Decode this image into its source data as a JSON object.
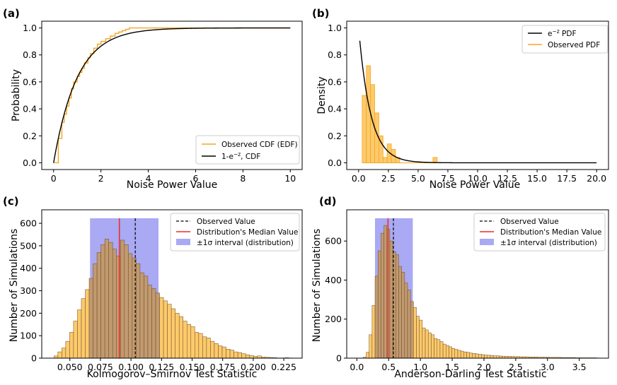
{
  "chart_data": [
    {
      "panel_label": "(a)",
      "type": "line",
      "xlabel": "Noise Power Value",
      "ylabel": "Probability",
      "xlim": [
        -0.5,
        10.5
      ],
      "ylim": [
        -0.05,
        1.05
      ],
      "xticks": [
        0,
        2,
        4,
        6,
        8,
        10
      ],
      "xtick_labels": [
        "0",
        "2",
        "4",
        "6",
        "8",
        "10"
      ],
      "yticks": [
        0.0,
        0.2,
        0.4,
        0.6,
        0.8,
        1.0
      ],
      "ytick_labels": [
        "0.0",
        "0.2",
        "0.4",
        "0.6",
        "0.8",
        "1.0"
      ],
      "legend_position": "lower right",
      "series": [
        {
          "name": "Observed CDF (EDF)",
          "color": "#f5a623",
          "style": "step",
          "x": [
            0.0,
            0.2,
            0.35,
            0.45,
            0.55,
            0.65,
            0.75,
            0.85,
            1.0,
            1.1,
            1.2,
            1.3,
            1.45,
            1.55,
            1.7,
            1.85,
            2.0,
            2.2,
            2.4,
            2.6,
            2.75,
            2.9,
            3.05,
            3.2,
            3.5,
            4.0,
            10.0
          ],
          "y": [
            0.0,
            0.18,
            0.3,
            0.36,
            0.42,
            0.48,
            0.55,
            0.6,
            0.64,
            0.67,
            0.7,
            0.74,
            0.78,
            0.81,
            0.85,
            0.88,
            0.9,
            0.92,
            0.94,
            0.96,
            0.97,
            0.98,
            0.99,
            1.0,
            1.0,
            1.0,
            1.0
          ]
        },
        {
          "name": "1-e$^{-z}$, CDF",
          "color": "#000000",
          "style": "line",
          "function": "1-exp(-x)",
          "xrange": [
            0,
            10
          ]
        }
      ],
      "legend": [
        "Observed CDF (EDF)",
        "1-e",
        "−z",
        ", CDF"
      ]
    },
    {
      "panel_label": "(b)",
      "type": "line",
      "xlabel": "Noise Power Value",
      "ylabel": "Density",
      "xlim": [
        -1.0,
        21.0
      ],
      "ylim": [
        -0.05,
        1.05
      ],
      "xticks": [
        0.0,
        2.5,
        5.0,
        7.5,
        10.0,
        12.5,
        15.0,
        17.5,
        20.0
      ],
      "xtick_labels": [
        "0.0",
        "2.5",
        "5.0",
        "7.5",
        "10.0",
        "12.5",
        "15.0",
        "17.5",
        "20.0"
      ],
      "yticks": [
        0.0,
        0.2,
        0.4,
        0.6,
        0.8,
        1.0
      ],
      "ytick_labels": [
        "0.0",
        "0.2",
        "0.4",
        "0.6",
        "0.8",
        "1.0"
      ],
      "legend_position": "upper right",
      "series": [
        {
          "name": "e$^{-z}$ PDF",
          "color": "#000000",
          "style": "line",
          "function": "exp(-x)",
          "xrange": [
            0.1,
            20
          ]
        },
        {
          "name": "Observed PDF",
          "color": "#f5a623",
          "style": "histogram",
          "bin_edges": [
            0.3,
            0.65,
            1.0,
            1.35,
            1.7,
            2.05,
            2.4,
            2.75,
            3.1,
            3.45,
            3.8,
            4.15,
            4.5,
            4.85,
            5.2,
            5.55,
            5.9,
            6.25,
            6.6
          ],
          "values": [
            0.5,
            0.72,
            0.58,
            0.37,
            0.2,
            0.04,
            0.14,
            0.1,
            0.04,
            0.0,
            0.0,
            0.0,
            0.0,
            0.0,
            0.0,
            0.0,
            0.0,
            0.04
          ]
        }
      ],
      "legend": [
        "e",
        "−z",
        " PDF",
        "Observed PDF"
      ]
    },
    {
      "panel_label": "(c)",
      "type": "bar",
      "xlabel": "Kolmogorov–Smirnov Test Statistic",
      "ylabel": "Number of Simulations",
      "xlim": [
        0.027,
        0.24
      ],
      "ylim": [
        0,
        660
      ],
      "xticks": [
        0.05,
        0.075,
        0.1,
        0.125,
        0.15,
        0.175,
        0.2,
        0.225
      ],
      "xtick_labels": [
        "0.050",
        "0.075",
        "0.100",
        "0.125",
        "0.150",
        "0.175",
        "0.200",
        "0.225"
      ],
      "yticks": [
        0,
        100,
        200,
        300,
        400,
        500,
        600
      ],
      "ytick_labels": [
        "0",
        "100",
        "200",
        "300",
        "400",
        "500",
        "600"
      ],
      "legend_position": "upper right",
      "bin_start": 0.037,
      "bin_width": 0.0032,
      "counts": [
        10,
        28,
        45,
        75,
        115,
        165,
        215,
        265,
        305,
        355,
        420,
        470,
        505,
        530,
        515,
        485,
        455,
        525,
        505,
        465,
        445,
        420,
        380,
        365,
        325,
        310,
        290,
        270,
        255,
        240,
        220,
        200,
        185,
        165,
        150,
        140,
        115,
        110,
        95,
        90,
        75,
        65,
        55,
        50,
        40,
        36,
        28,
        25,
        20,
        15,
        12,
        8,
        10,
        5,
        4,
        3,
        2,
        1,
        1,
        2,
        1
      ],
      "observed_value": 0.1035,
      "median_value": 0.0905,
      "sigma_interval": [
        0.0665,
        0.1225
      ],
      "legend": [
        "Observed Value",
        "Distribution's Median Value",
        "±1σ interval (distribution)"
      ]
    },
    {
      "panel_label": "(d)",
      "type": "bar",
      "xlabel": "Anderson-Darling Test Statistic",
      "ylabel": "Number of Simulations",
      "xlim": [
        -0.16,
        3.96
      ],
      "ylim": [
        0,
        760
      ],
      "xticks": [
        0.0,
        0.5,
        1.0,
        1.5,
        2.0,
        2.5,
        3.0,
        3.5
      ],
      "xtick_labels": [
        "0.0",
        "0.5",
        "1.0",
        "1.5",
        "2.0",
        "2.5",
        "3.0",
        "3.5"
      ],
      "yticks": [
        0,
        200,
        400,
        600
      ],
      "ytick_labels": [
        "0",
        "200",
        "400",
        "600"
      ],
      "legend_position": "upper right",
      "bin_start": 0.1,
      "bin_width": 0.0465,
      "counts": [
        5,
        30,
        120,
        270,
        420,
        550,
        640,
        680,
        660,
        600,
        545,
        530,
        470,
        440,
        385,
        350,
        290,
        260,
        215,
        195,
        155,
        145,
        130,
        120,
        100,
        95,
        85,
        72,
        65,
        58,
        50,
        45,
        40,
        36,
        32,
        30,
        26,
        24,
        22,
        20,
        18,
        16,
        15,
        14,
        12,
        12,
        11,
        10,
        10,
        9,
        9,
        8,
        8,
        7,
        7,
        7,
        6,
        6,
        6,
        5,
        5,
        5,
        5,
        4,
        4,
        4,
        4,
        3,
        3,
        3,
        3,
        3,
        2,
        2,
        2,
        2,
        2,
        2,
        2,
        1
      ],
      "observed_value": 0.575,
      "median_value": 0.49,
      "sigma_interval": [
        0.285,
        0.88
      ],
      "legend": [
        "Observed Value",
        "Distribution's Median Value",
        "±1σ interval (distribution)"
      ]
    }
  ]
}
